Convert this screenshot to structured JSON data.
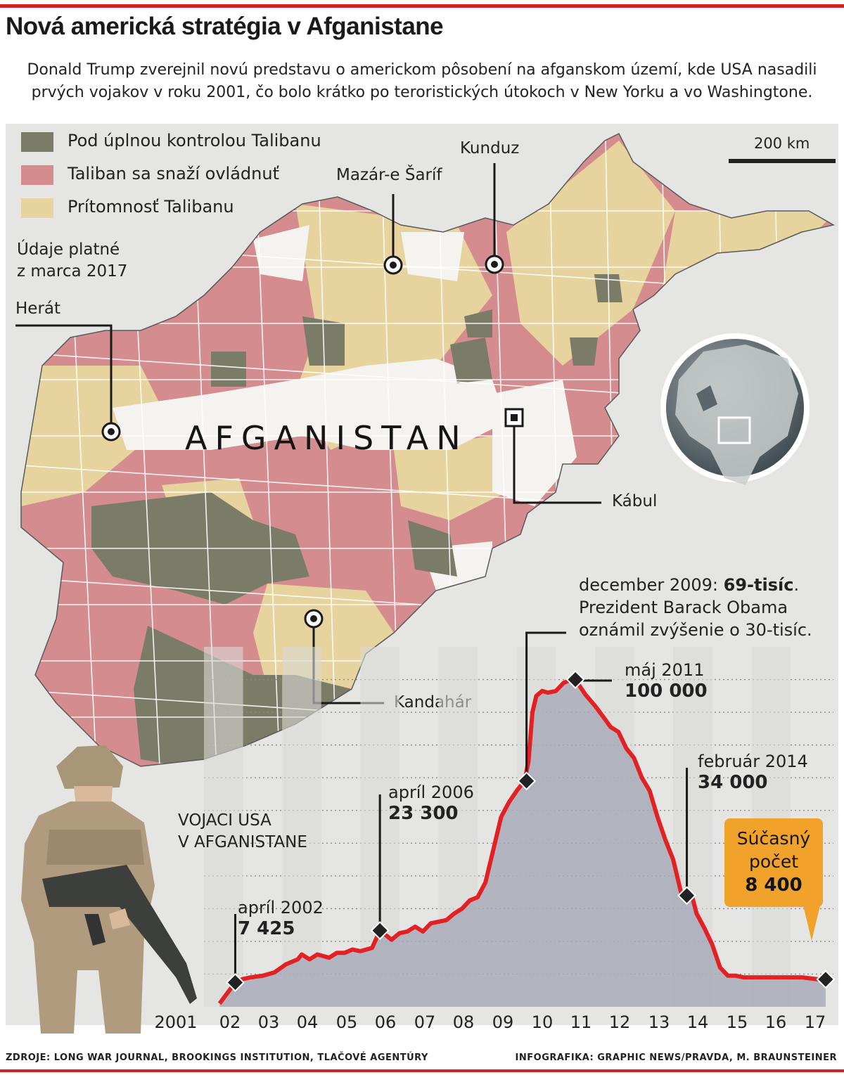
{
  "header": {
    "title": "Nová americká stratégia v Afganistane",
    "lead": "Donald Trump zverejnil novú predstavu o americkom pôsobení na afganskom území, kde USA nasadili prvých vojakov v roku 2001, čo bolo krátko po teroristických útokoch v New Yorku a vo Washingtone."
  },
  "map": {
    "legend": [
      {
        "label": "Pod úplnou kontrolou Talibanu",
        "color": "#7b7c68"
      },
      {
        "label": "Taliban sa snaží ovládnuť",
        "color": "#d48c8e"
      },
      {
        "label": "Prítomnosť Talibanu",
        "color": "#e6d39d"
      }
    ],
    "validity_line1": "Údaje platné",
    "validity_line2": "z marca 2017",
    "scale": "200 km",
    "country": "AFGANISTAN",
    "cities": {
      "herat": "Herát",
      "mazar": "Mazár-e Šaríf",
      "kunduz": "Kunduz",
      "kabul": "Kábul",
      "kandahar": "Kandahár"
    }
  },
  "chart_data": {
    "type": "area",
    "title": "VOJACI USA V AFGANISTANE",
    "title_line1": "VOJACI USA",
    "title_line2": "V AFGANISTANE",
    "x_ticks": [
      "2001",
      "02",
      "03",
      "04",
      "05",
      "06",
      "07",
      "08",
      "09",
      "10",
      "11",
      "12",
      "13",
      "14",
      "15",
      "16",
      "17"
    ],
    "xlim": [
      2001.5,
      2017.6
    ],
    "ylim": [
      0,
      110000
    ],
    "series": [
      {
        "x": [
          2001.9,
          2002.3,
          2002.5,
          2002.7,
          2003.0,
          2003.3,
          2003.6,
          2003.9,
          2004.0,
          2004.2,
          2004.4,
          2004.7,
          2004.9,
          2005.1,
          2005.3,
          2005.5,
          2005.8,
          2006.0,
          2006.3,
          2006.5,
          2006.7,
          2006.9,
          2007.1,
          2007.3,
          2007.5,
          2007.7,
          2007.9,
          2008.1,
          2008.3,
          2008.5,
          2008.7,
          2008.9,
          2009.1,
          2009.3,
          2009.5,
          2009.7,
          2009.8,
          2009.9,
          2010.0,
          2010.15,
          2010.3,
          2010.5,
          2010.7,
          2010.9,
          2011.0,
          2011.25,
          2011.5,
          2011.75,
          2011.9,
          2012.1,
          2012.3,
          2012.5,
          2012.7,
          2012.9,
          2013.1,
          2013.3,
          2013.5,
          2013.7,
          2013.85,
          2014.0,
          2014.1,
          2014.3,
          2014.5,
          2014.7,
          2014.9,
          2015.1,
          2015.3,
          2015.6,
          2016.0,
          2016.4,
          2016.8,
          2017.2,
          2017.4
        ],
        "y": [
          1000,
          7425,
          8500,
          9000,
          9500,
          10500,
          13000,
          14500,
          16000,
          14500,
          16000,
          15000,
          16500,
          16500,
          17500,
          17000,
          18000,
          23300,
          20500,
          22500,
          23000,
          24500,
          23000,
          25500,
          26000,
          26500,
          28500,
          30000,
          32500,
          33500,
          38000,
          48000,
          58000,
          62500,
          66000,
          69000,
          75000,
          90000,
          95000,
          96500,
          96000,
          96500,
          99000,
          100000,
          100000,
          95500,
          92000,
          88000,
          85500,
          84000,
          79000,
          76000,
          70000,
          66000,
          58000,
          51000,
          45000,
          35000,
          34000,
          33000,
          28500,
          24000,
          19000,
          12000,
          9500,
          9500,
          9000,
          9000,
          9000,
          9000,
          9000,
          8400,
          8400
        ]
      }
    ],
    "markers": [
      {
        "x": 2002.3,
        "y": 7425,
        "label": "apríl 2002",
        "value_label": "7 425"
      },
      {
        "x": 2006.0,
        "y": 23300,
        "label": "apríl 2006",
        "value_label": "23 300"
      },
      {
        "x": 2009.75,
        "y": 69000,
        "label": "december 2009"
      },
      {
        "x": 2011.0,
        "y": 100000,
        "label": "máj 2011",
        "value_label": "100 000"
      },
      {
        "x": 2013.85,
        "y": 34000,
        "label": "február 2014",
        "value_label": "34 000"
      },
      {
        "x": 2017.4,
        "y": 8400
      }
    ],
    "annotation_dec2009": {
      "line1_prefix": "december 2009: ",
      "line1_bold": "69-tisíc",
      "line1_suffix": ".",
      "line2": "Prezident Barack Obama",
      "line3": "oznámil zvýšenie o 30-tisíc."
    },
    "current": {
      "label_line1": "Súčasný",
      "label_line2": "počet",
      "value": "8 400"
    },
    "colors": {
      "line": "#e32124",
      "fill": "#a5a9b7",
      "marker": "#222222"
    }
  },
  "footer": {
    "sources": "ZDROJE: LONG WAR JOURNAL, BROOKINGS INSTITUTION, TLAČOVÉ AGENTÚRY",
    "credit": "INFOGRAFIKA: GRAPHIC NEWS/PRAVDA, M. BRAUNSTEINER"
  }
}
